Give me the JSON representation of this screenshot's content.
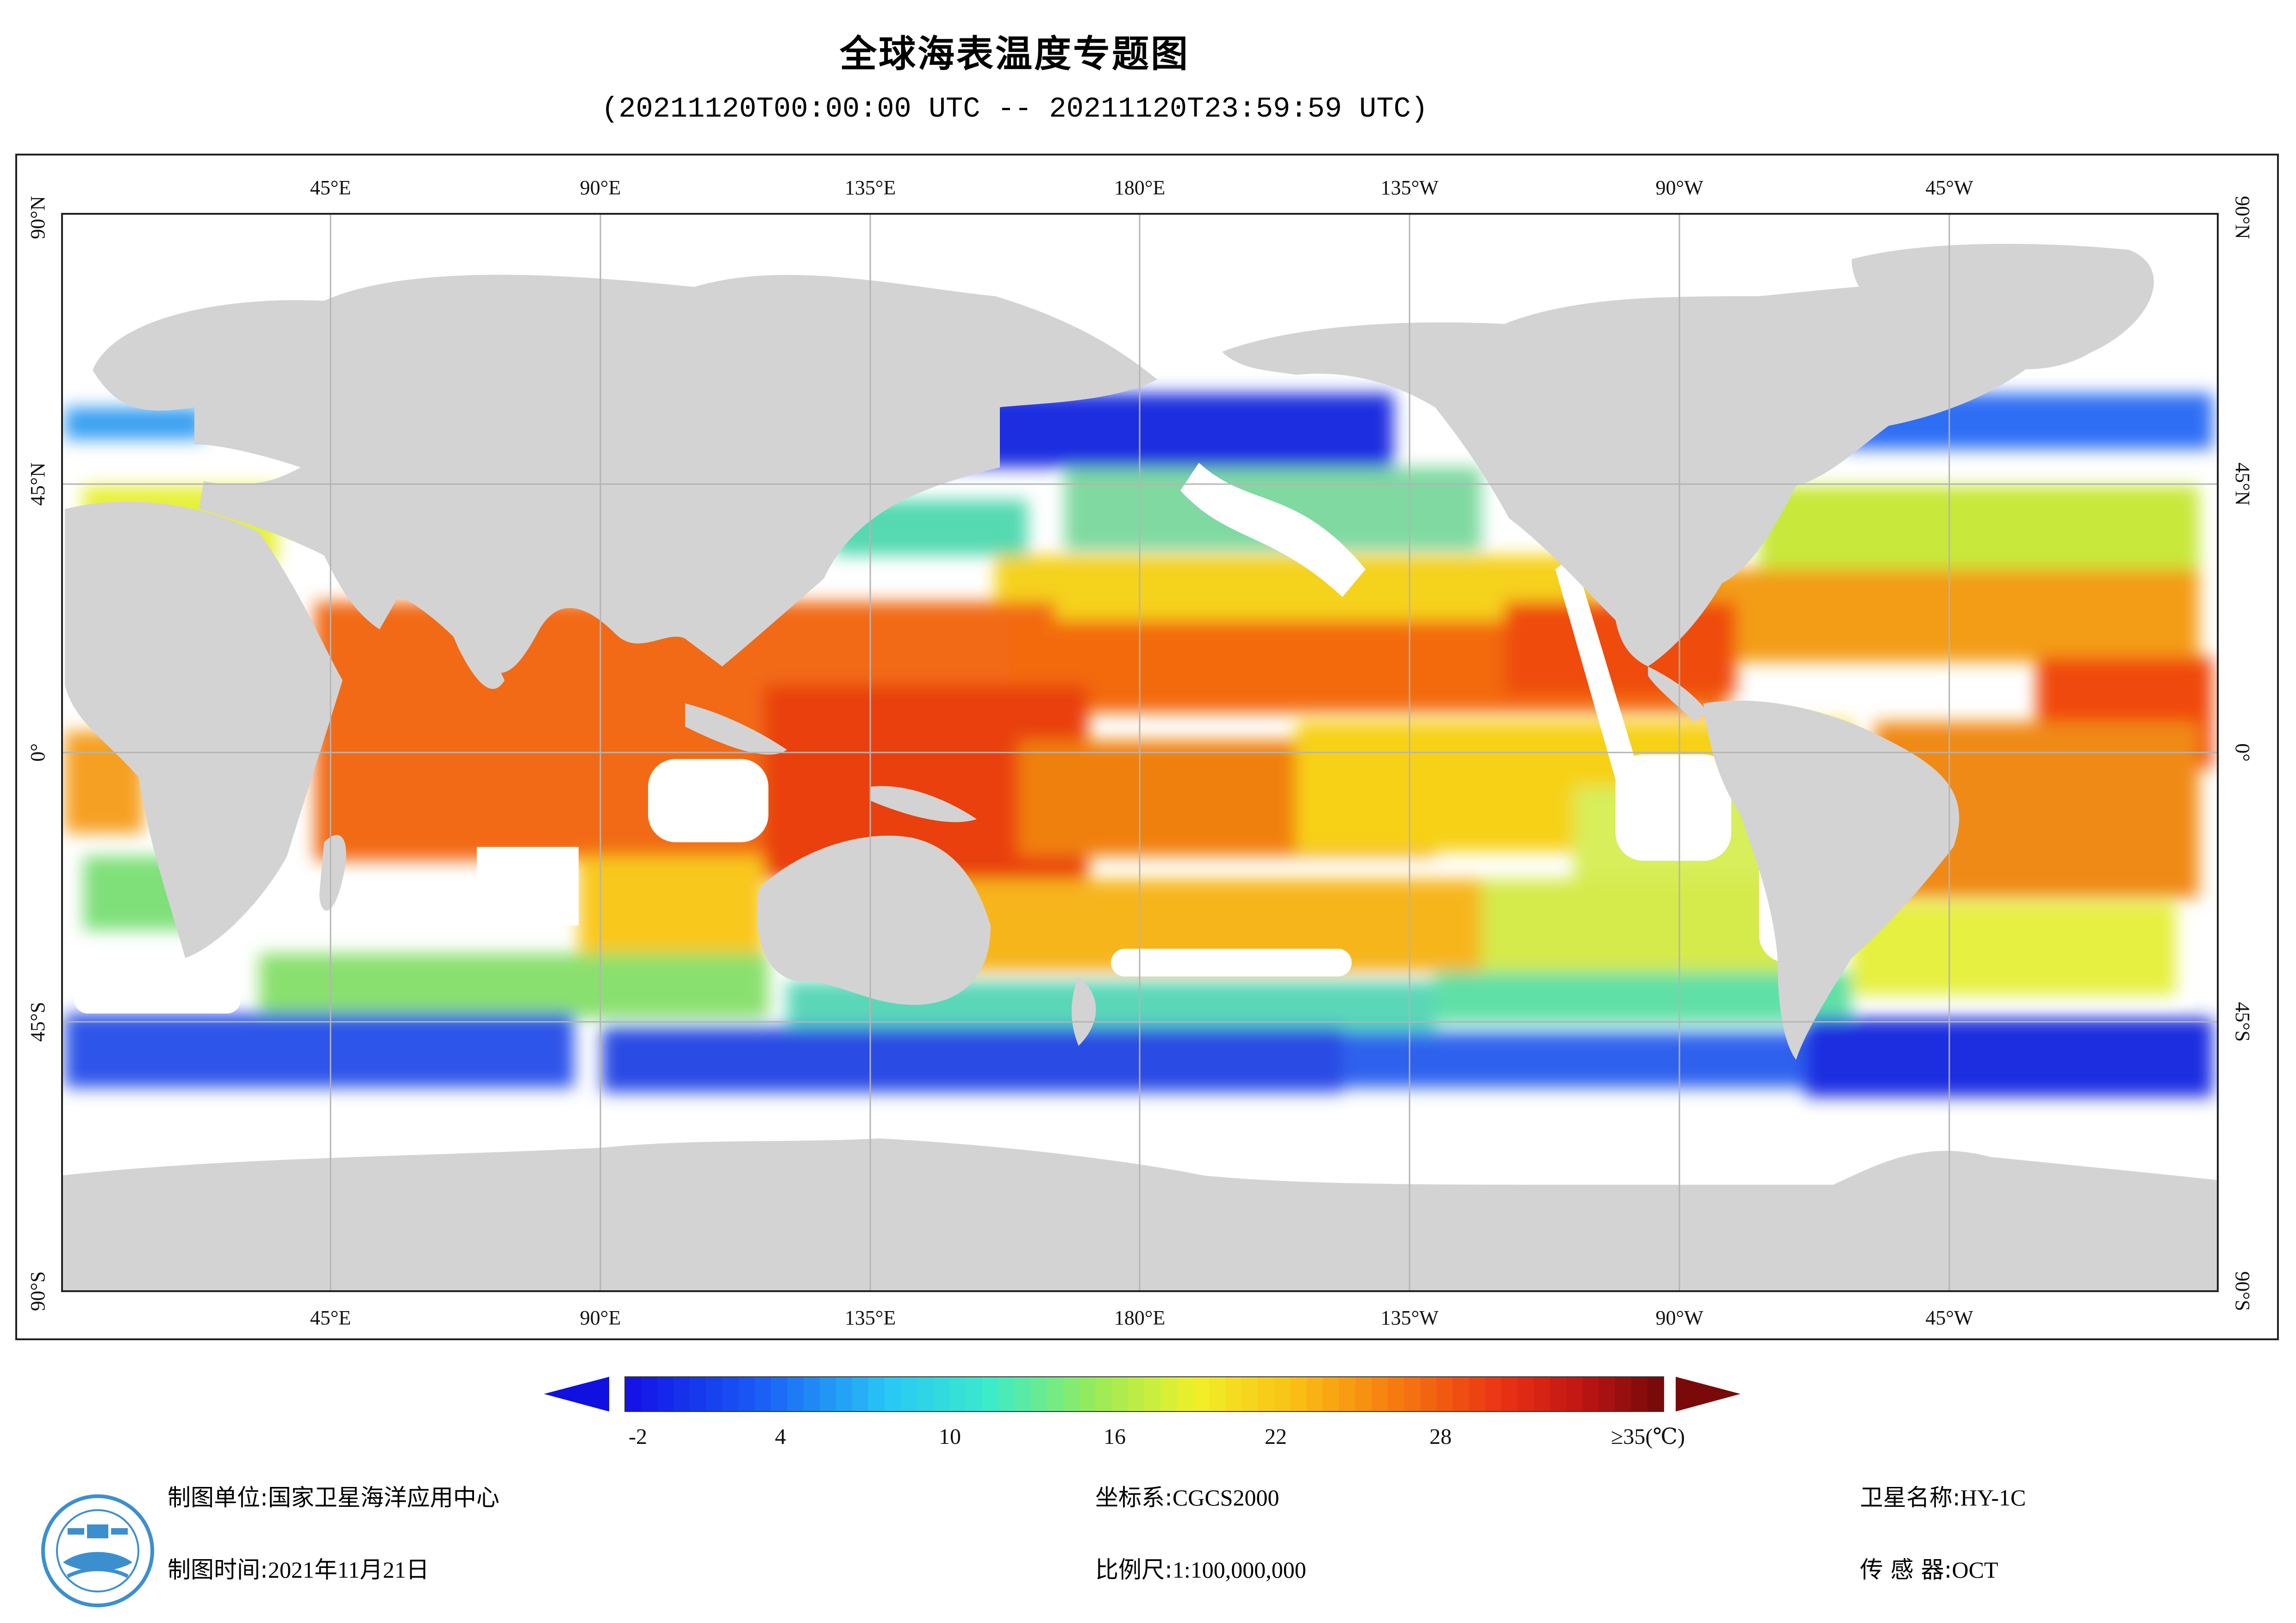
{
  "header": {
    "title": "全球海表温度专题图",
    "subtitle": "(20211120T00:00:00 UTC -- 20211120T23:59:59 UTC)"
  },
  "map": {
    "lon_labels_top": [
      "45°E",
      "90°E",
      "135°E",
      "180°E",
      "135°W",
      "90°W",
      "45°W"
    ],
    "lon_labels_bottom": [
      "45°E",
      "90°E",
      "135°E",
      "180°E",
      "135°W",
      "90°W",
      "45°W"
    ],
    "lat_labels": [
      "90°N",
      "45°N",
      "0°",
      "45°S",
      "90°S"
    ],
    "colors": {
      "land": "#d3d3d3",
      "ocean_missing": "#ffffff",
      "grid": "#b4b4b4"
    }
  },
  "colorbar": {
    "ticks": [
      "-2",
      "4",
      "10",
      "16",
      "22",
      "28",
      "≥35(℃)"
    ],
    "under_color": "#1010e0",
    "over_color": "#7a0a0a"
  },
  "footer": {
    "producer_label": "制图单位:",
    "producer_value": "国家卫星海洋应用中心",
    "date_label": "制图时间:",
    "date_value": "2021年11月21日",
    "crs_label": "坐标系:",
    "crs_value": "CGCS2000",
    "scale_label": "比例尺:",
    "scale_value": "1:100,000,000",
    "satellite_label": "卫星名称:",
    "satellite_value": "HY-1C",
    "sensor_label": "传 感 器:",
    "sensor_value": "OCT"
  },
  "logo": {
    "icon": "nsoas-logo-icon"
  }
}
